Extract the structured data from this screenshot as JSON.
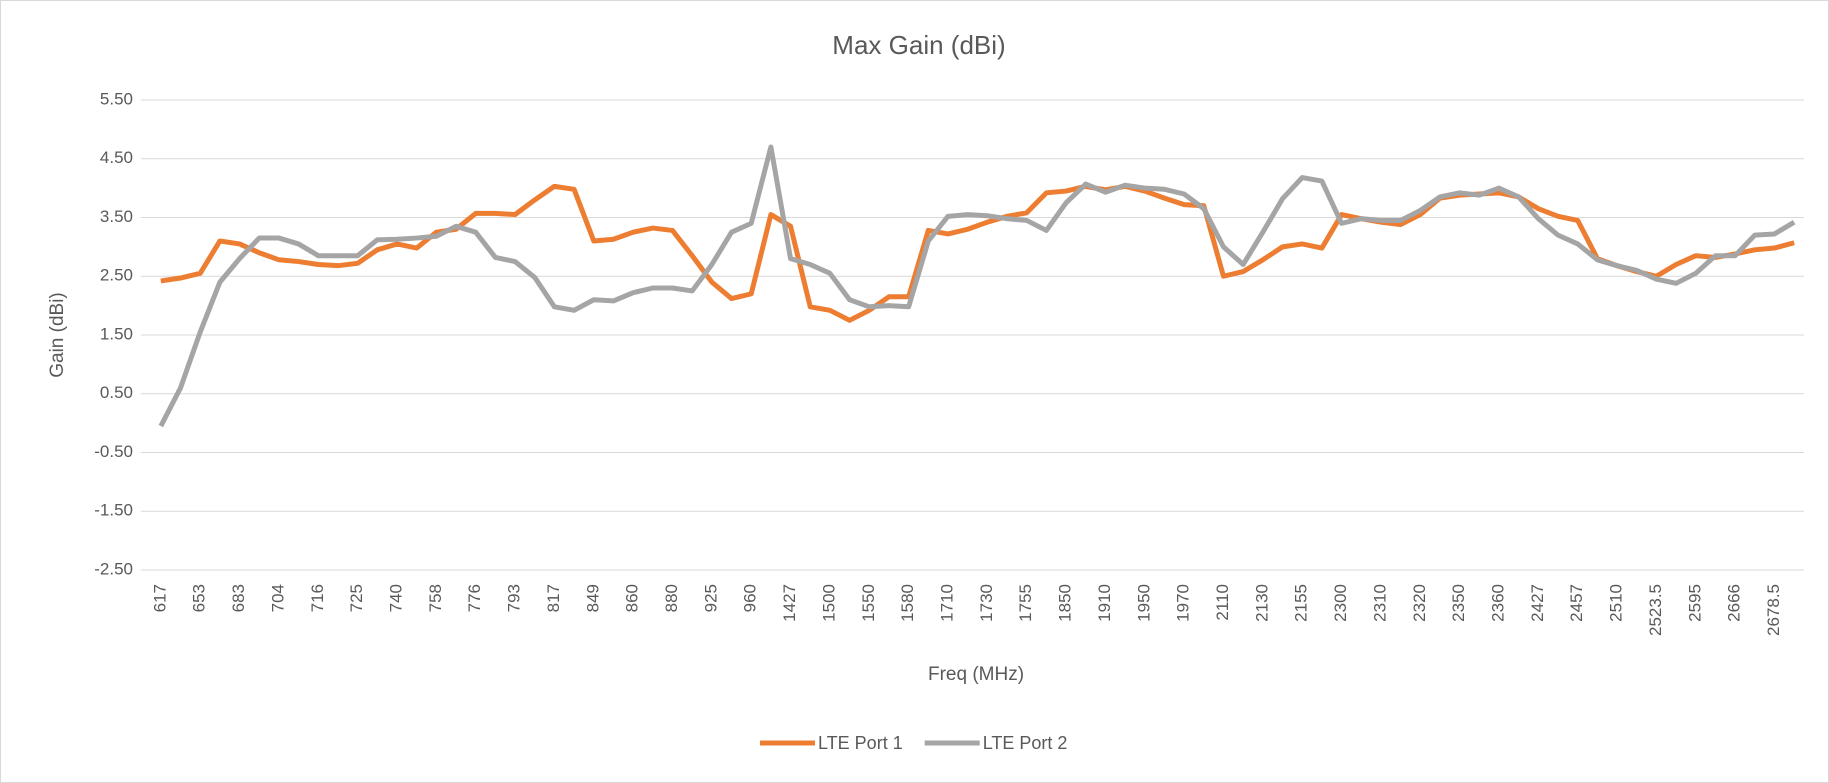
{
  "chart_data": {
    "type": "line",
    "title": "Max Gain (dBi)",
    "x_label": "Freq (MHz)",
    "y_label": "Gain (dBi)",
    "categories": [
      "617",
      null,
      "653",
      null,
      "683",
      null,
      "704",
      null,
      "716",
      null,
      "725",
      null,
      "740",
      null,
      "758",
      null,
      "776",
      null,
      "793",
      null,
      "817",
      null,
      "849",
      null,
      "860",
      null,
      "880",
      null,
      "925",
      null,
      "960",
      null,
      "1427",
      null,
      "1500",
      null,
      "1550",
      null,
      "1580",
      null,
      "1710",
      null,
      "1730",
      null,
      "1755",
      null,
      "1850",
      null,
      "1910",
      null,
      "1950",
      null,
      "1970",
      null,
      "2110",
      null,
      "2130",
      null,
      "2155",
      null,
      "2300",
      null,
      "2310",
      null,
      "2320",
      null,
      "2350",
      null,
      "2360",
      null,
      "2427",
      null,
      "2457",
      null,
      "2510",
      null,
      "2523.5",
      null,
      "2595",
      null,
      "2666",
      null,
      "2678.5",
      null
    ],
    "series": [
      {
        "name": "LTE Port 1",
        "color": "#ed7d31",
        "values": [
          2.42,
          2.47,
          2.55,
          3.1,
          3.05,
          2.9,
          2.78,
          2.75,
          2.7,
          2.68,
          2.72,
          2.95,
          3.05,
          2.98,
          3.25,
          3.3,
          3.57,
          3.57,
          3.55,
          3.8,
          4.03,
          3.98,
          3.1,
          3.13,
          3.25,
          3.32,
          3.28,
          2.85,
          2.4,
          2.12,
          2.2,
          3.55,
          3.35,
          1.98,
          1.92,
          1.75,
          1.92,
          2.15,
          2.15,
          3.28,
          3.22,
          3.3,
          3.42,
          3.52,
          3.58,
          3.92,
          3.95,
          4.03,
          3.97,
          4.03,
          3.95,
          3.83,
          3.72,
          3.7,
          2.5,
          2.58,
          2.78,
          3.0,
          3.05,
          2.98,
          3.55,
          3.48,
          3.42,
          3.38,
          3.55,
          3.83,
          3.88,
          3.9,
          3.92,
          3.85,
          3.65,
          3.52,
          3.45,
          2.8,
          2.68,
          2.58,
          2.5,
          2.7,
          2.85,
          2.82,
          2.88,
          2.95,
          2.98,
          3.07
        ]
      },
      {
        "name": "LTE Port 2",
        "color": "#a5a5a5",
        "values": [
          -0.05,
          0.6,
          1.55,
          2.4,
          2.8,
          3.15,
          3.15,
          3.05,
          2.85,
          2.85,
          2.85,
          3.12,
          3.13,
          3.15,
          3.18,
          3.35,
          3.25,
          2.82,
          2.75,
          2.48,
          1.98,
          1.92,
          2.1,
          2.08,
          2.22,
          2.3,
          2.3,
          2.25,
          2.7,
          3.25,
          3.4,
          4.7,
          2.8,
          2.7,
          2.55,
          2.1,
          1.98,
          2.0,
          1.98,
          3.1,
          3.52,
          3.55,
          3.53,
          3.48,
          3.45,
          3.28,
          3.75,
          4.07,
          3.93,
          4.05,
          4.0,
          3.98,
          3.9,
          3.65,
          3.0,
          2.7,
          3.25,
          3.82,
          4.18,
          4.12,
          3.4,
          3.48,
          3.45,
          3.45,
          3.62,
          3.85,
          3.92,
          3.88,
          4.0,
          3.85,
          3.48,
          3.2,
          3.05,
          2.78,
          2.68,
          2.6,
          2.45,
          2.38,
          2.55,
          2.85,
          2.85,
          3.2,
          3.22,
          3.42
        ]
      }
    ],
    "ylim": [
      -2.5,
      5.5
    ],
    "yticks": [
      {
        "value": -2.5,
        "label": "-2.50"
      },
      {
        "value": -1.5,
        "label": "-1.50"
      },
      {
        "value": -0.5,
        "label": "-0.50"
      },
      {
        "value": 0.5,
        "label": "0.50"
      },
      {
        "value": 1.5,
        "label": "1.50"
      },
      {
        "value": 2.5,
        "label": "2.50"
      },
      {
        "value": 3.5,
        "label": "3.50"
      },
      {
        "value": 4.5,
        "label": "4.50"
      },
      {
        "value": 5.5,
        "label": "5.50"
      }
    ],
    "grid": true,
    "legend": "bottom"
  }
}
